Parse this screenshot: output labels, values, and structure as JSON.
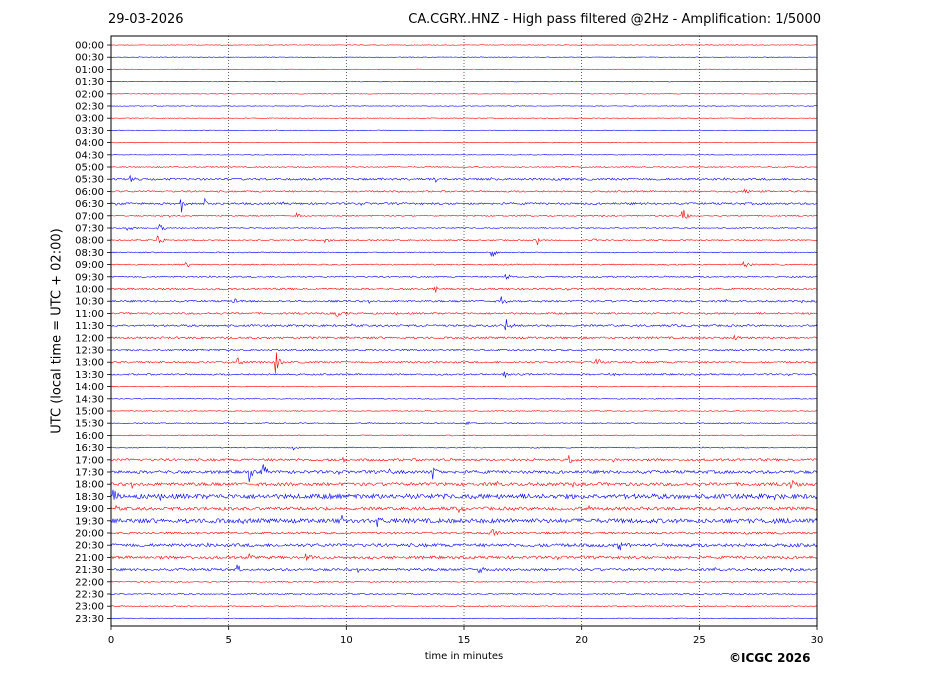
{
  "header": {
    "date": "29-03-2026",
    "title": "CA.CGRY..HNZ - High pass filtered @2Hz - Amplification: 1/5000"
  },
  "footer": {
    "copyright": "©ICGC 2026"
  },
  "chart_data": {
    "type": "line",
    "title": "CA.CGRY..HNZ - High pass filtered @2Hz - Amplification: 1/5000",
    "xlabel": "time in minutes",
    "ylabel": "UTC (local time = UTC + 02:00)",
    "xlim": [
      0,
      30
    ],
    "x_ticks": [
      "0",
      "5",
      "10",
      "15",
      "20",
      "25",
      "30"
    ],
    "grid": "vertical dotted lines at 5-minute intervals",
    "trace_colors": [
      "#ff0000",
      "#0000ff"
    ],
    "rows": [
      "00:00",
      "00:30",
      "01:00",
      "01:30",
      "02:00",
      "02:30",
      "03:00",
      "03:30",
      "04:00",
      "04:30",
      "05:00",
      "05:30",
      "06:00",
      "06:30",
      "07:00",
      "07:30",
      "08:00",
      "08:30",
      "09:00",
      "09:30",
      "10:00",
      "10:30",
      "11:00",
      "11:30",
      "12:00",
      "12:30",
      "13:00",
      "13:30",
      "14:00",
      "14:30",
      "15:00",
      "15:30",
      "16:00",
      "16:30",
      "17:00",
      "17:30",
      "18:00",
      "18:30",
      "19:00",
      "19:30",
      "20:00",
      "20:30",
      "21:00",
      "21:30",
      "22:00",
      "22:30",
      "23:00",
      "23:30"
    ],
    "noise_level": [
      0.3,
      0.3,
      0.3,
      0.3,
      0.3,
      0.3,
      0.3,
      0.3,
      0.3,
      0.3,
      0.5,
      1.0,
      0.8,
      1.0,
      0.6,
      0.5,
      0.6,
      0.5,
      0.6,
      0.7,
      0.9,
      0.9,
      0.9,
      1.0,
      1.0,
      0.8,
      0.9,
      0.8,
      0.4,
      0.4,
      0.4,
      0.5,
      0.5,
      0.5,
      1.2,
      1.5,
      1.6,
      2.4,
      1.6,
      2.2,
      1.0,
      1.6,
      1.4,
      1.2,
      0.6,
      0.6,
      0.5,
      0.4
    ],
    "events": [
      {
        "row": "05:30",
        "minute": 0.8,
        "amp": 4
      },
      {
        "row": "05:30",
        "minute": 13.7,
        "amp": 5
      },
      {
        "row": "06:00",
        "minute": 26.9,
        "amp": 5
      },
      {
        "row": "06:30",
        "minute": 3.0,
        "amp": 8
      },
      {
        "row": "06:30",
        "minute": 4.0,
        "amp": 6
      },
      {
        "row": "06:30",
        "minute": 0.2,
        "amp": 3
      },
      {
        "row": "07:00",
        "minute": 24.3,
        "amp": 9
      },
      {
        "row": "07:00",
        "minute": 7.9,
        "amp": 4
      },
      {
        "row": "07:30",
        "minute": 2.0,
        "amp": 8
      },
      {
        "row": "07:30",
        "minute": 0.7,
        "amp": 4
      },
      {
        "row": "08:00",
        "minute": 2.0,
        "amp": 8
      },
      {
        "row": "08:00",
        "minute": 18.1,
        "amp": 7
      },
      {
        "row": "08:00",
        "minute": 9.1,
        "amp": 3
      },
      {
        "row": "08:00",
        "minute": 20.5,
        "amp": 3
      },
      {
        "row": "08:30",
        "minute": 16.2,
        "amp": 6
      },
      {
        "row": "09:00",
        "minute": 3.2,
        "amp": 4
      },
      {
        "row": "09:00",
        "minute": 26.9,
        "amp": 4
      },
      {
        "row": "09:30",
        "minute": 16.8,
        "amp": 4
      },
      {
        "row": "10:00",
        "minute": 13.8,
        "amp": 3
      },
      {
        "row": "10:30",
        "minute": 5.2,
        "amp": 4
      },
      {
        "row": "10:30",
        "minute": 16.6,
        "amp": 5
      },
      {
        "row": "11:00",
        "minute": 9.6,
        "amp": 4
      },
      {
        "row": "11:30",
        "minute": 13.3,
        "amp": 4
      },
      {
        "row": "11:30",
        "minute": 16.8,
        "amp": 6
      },
      {
        "row": "12:00",
        "minute": 26.5,
        "amp": 4
      },
      {
        "row": "13:00",
        "minute": 7.0,
        "amp": 12
      },
      {
        "row": "13:00",
        "minute": 5.4,
        "amp": 6
      },
      {
        "row": "13:00",
        "minute": 20.6,
        "amp": 6
      },
      {
        "row": "13:30",
        "minute": 16.7,
        "amp": 4
      },
      {
        "row": "13:30",
        "minute": 21.2,
        "amp": 4
      },
      {
        "row": "15:30",
        "minute": 15.1,
        "amp": 3
      },
      {
        "row": "16:30",
        "minute": 7.8,
        "amp": 3
      },
      {
        "row": "17:00",
        "minute": 9.9,
        "amp": 6
      },
      {
        "row": "17:00",
        "minute": 19.5,
        "amp": 5
      },
      {
        "row": "17:30",
        "minute": 13.7,
        "amp": 11
      },
      {
        "row": "17:30",
        "minute": 5.9,
        "amp": 9
      },
      {
        "row": "17:30",
        "minute": 6.4,
        "amp": 11
      },
      {
        "row": "17:30",
        "minute": 11.8,
        "amp": 7
      },
      {
        "row": "18:00",
        "minute": 28.9,
        "amp": 6
      },
      {
        "row": "18:30",
        "minute": 0.1,
        "amp": 7
      },
      {
        "row": "19:00",
        "minute": 14.8,
        "amp": 3
      },
      {
        "row": "19:30",
        "minute": 9.8,
        "amp": 5
      },
      {
        "row": "19:30",
        "minute": 11.3,
        "amp": 6
      },
      {
        "row": "20:00",
        "minute": 16.1,
        "amp": 13
      },
      {
        "row": "20:30",
        "minute": 21.6,
        "amp": 6
      },
      {
        "row": "21:00",
        "minute": 5.9,
        "amp": 5
      },
      {
        "row": "21:00",
        "minute": 8.3,
        "amp": 5
      },
      {
        "row": "21:30",
        "minute": 15.6,
        "amp": 7
      },
      {
        "row": "21:30",
        "minute": 5.4,
        "amp": 4
      }
    ]
  }
}
